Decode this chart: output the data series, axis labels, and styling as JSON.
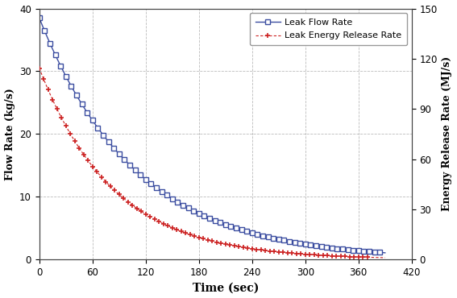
{
  "title": "",
  "xlabel": "Time (sec)",
  "ylabel_left": "Flow Rate (kg/s)",
  "ylabel_right": "Energy Release Rate (MJ/s)",
  "xlim": [
    0,
    420
  ],
  "ylim_left": [
    0,
    40
  ],
  "ylim_right": [
    0,
    150
  ],
  "xticks": [
    0,
    60,
    120,
    180,
    240,
    300,
    360,
    420
  ],
  "yticks_left": [
    0,
    10,
    20,
    30,
    40
  ],
  "yticks_right": [
    0,
    30,
    60,
    90,
    120,
    150
  ],
  "flow_rate_color": "#3B4DA0",
  "energy_rate_color": "#cc2222",
  "legend_flow": "Leak Flow Rate",
  "legend_energy": "Leak Energy Release Rate",
  "background_color": "#ffffff",
  "grid_color": "#bbbbbb",
  "flow_rate_decay": 0.0092,
  "flow_rate_initial": 38.5,
  "energy_rate_decay_a": 0.022,
  "energy_rate_decay_b": 0.0078,
  "energy_rate_initial": 30.5,
  "flow_marker_step": 6,
  "energy_marker_step": 5,
  "t_max_flow": 385,
  "t_max_energy": 375
}
